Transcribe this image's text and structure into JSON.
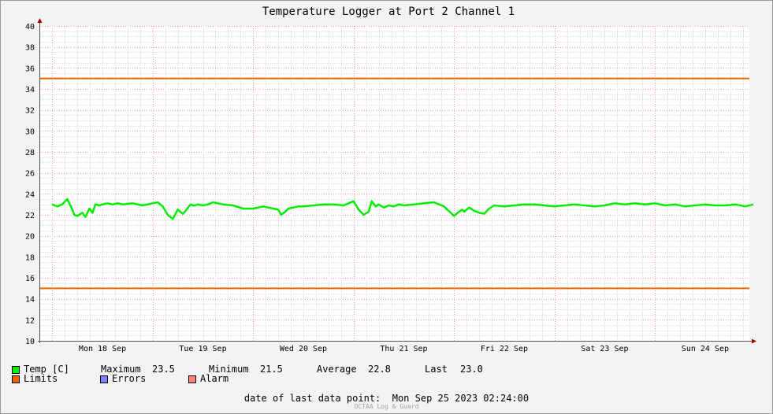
{
  "chart_data": {
    "type": "line",
    "title": "Temperature Logger at Port 2 Channel 1",
    "xlabel": "",
    "ylabel": "",
    "ylim": [
      10,
      40
    ],
    "yticks": [
      10,
      12,
      14,
      16,
      18,
      20,
      22,
      24,
      26,
      28,
      30,
      32,
      34,
      36,
      38,
      40
    ],
    "x_tick_labels": [
      "Mon 18 Sep",
      "Tue 19 Sep",
      "Wed 20 Sep",
      "Thu 21 Sep",
      "Fri 22 Sep",
      "Sat 23 Sep",
      "Sun 24 Sep"
    ],
    "grid": true,
    "series": [
      {
        "name": "Temp [C]",
        "color": "#00ee00",
        "x_days": [
          0.0,
          0.05,
          0.1,
          0.15,
          0.2,
          0.22,
          0.25,
          0.3,
          0.33,
          0.37,
          0.4,
          0.43,
          0.47,
          0.5,
          0.55,
          0.6,
          0.65,
          0.7,
          0.8,
          0.9,
          1.0,
          1.05,
          1.1,
          1.15,
          1.2,
          1.25,
          1.3,
          1.33,
          1.36,
          1.38,
          1.4,
          1.42,
          1.45,
          1.5,
          1.55,
          1.6,
          1.7,
          1.8,
          1.9,
          2.0,
          2.1,
          2.2,
          2.25,
          2.28,
          2.32,
          2.35,
          2.4,
          2.45,
          2.5,
          2.6,
          2.7,
          2.8,
          2.9,
          3.0,
          3.05,
          3.1,
          3.15,
          3.18,
          3.22,
          3.25,
          3.3,
          3.35,
          3.4,
          3.45,
          3.5,
          3.6,
          3.7,
          3.8,
          3.9,
          4.0,
          4.05,
          4.08,
          4.1,
          4.15,
          4.2,
          4.25,
          4.3,
          4.35,
          4.4,
          4.5,
          4.6,
          4.7,
          4.8,
          4.9,
          5.0,
          5.1,
          5.2,
          5.3,
          5.4,
          5.5,
          5.6,
          5.7,
          5.8,
          5.9,
          6.0,
          6.1,
          6.2,
          6.3,
          6.4,
          6.5,
          6.6,
          6.7,
          6.8,
          6.9,
          6.98
        ],
        "values": [
          23.0,
          22.8,
          23.0,
          23.5,
          22.5,
          22.0,
          21.9,
          22.2,
          21.8,
          22.6,
          22.2,
          23.0,
          22.9,
          23.0,
          23.1,
          23.0,
          23.1,
          23.0,
          23.1,
          22.9,
          23.1,
          23.2,
          22.8,
          22.0,
          21.6,
          22.5,
          22.1,
          22.4,
          22.8,
          23.0,
          22.9,
          22.9,
          23.0,
          22.9,
          23.0,
          23.2,
          23.0,
          22.9,
          22.6,
          22.6,
          22.8,
          22.6,
          22.5,
          22.0,
          22.3,
          22.6,
          22.7,
          22.8,
          22.8,
          22.9,
          23.0,
          23.0,
          22.9,
          23.3,
          22.5,
          22.0,
          22.3,
          23.3,
          22.8,
          23.0,
          22.7,
          22.9,
          22.8,
          23.0,
          22.9,
          23.0,
          23.1,
          23.2,
          22.8,
          21.9,
          22.3,
          22.5,
          22.3,
          22.7,
          22.4,
          22.2,
          22.1,
          22.6,
          22.9,
          22.8,
          22.9,
          23.0,
          23.0,
          22.9,
          22.8,
          22.9,
          23.0,
          22.9,
          22.8,
          22.9,
          23.1,
          23.0,
          23.1,
          23.0,
          23.1,
          22.9,
          23.0,
          22.8,
          22.9,
          23.0,
          22.9,
          22.9,
          23.0,
          22.8,
          23.0
        ]
      }
    ],
    "limits": {
      "name": "Limits",
      "color": "#ee6600",
      "values": [
        15,
        35
      ]
    },
    "legend": [
      {
        "label": "Temp [C]",
        "color": "#00ee00"
      },
      {
        "label": "Limits",
        "color": "#ee6600"
      },
      {
        "label": "Errors",
        "color": "#7f7fff"
      },
      {
        "label": "Alarm",
        "color": "#ff8080"
      }
    ]
  },
  "stats": {
    "maximum_label": "Maximum",
    "maximum": "23.5",
    "minimum_label": "Minimum",
    "minimum": "21.5",
    "average_label": "Average",
    "average": "22.8",
    "last_label": "Last",
    "last": "23.0"
  },
  "footer": {
    "date_text": "date of last data point:  Mon Sep 25 2023 02:24:00",
    "brand": "OCTAA Log & Guard"
  }
}
